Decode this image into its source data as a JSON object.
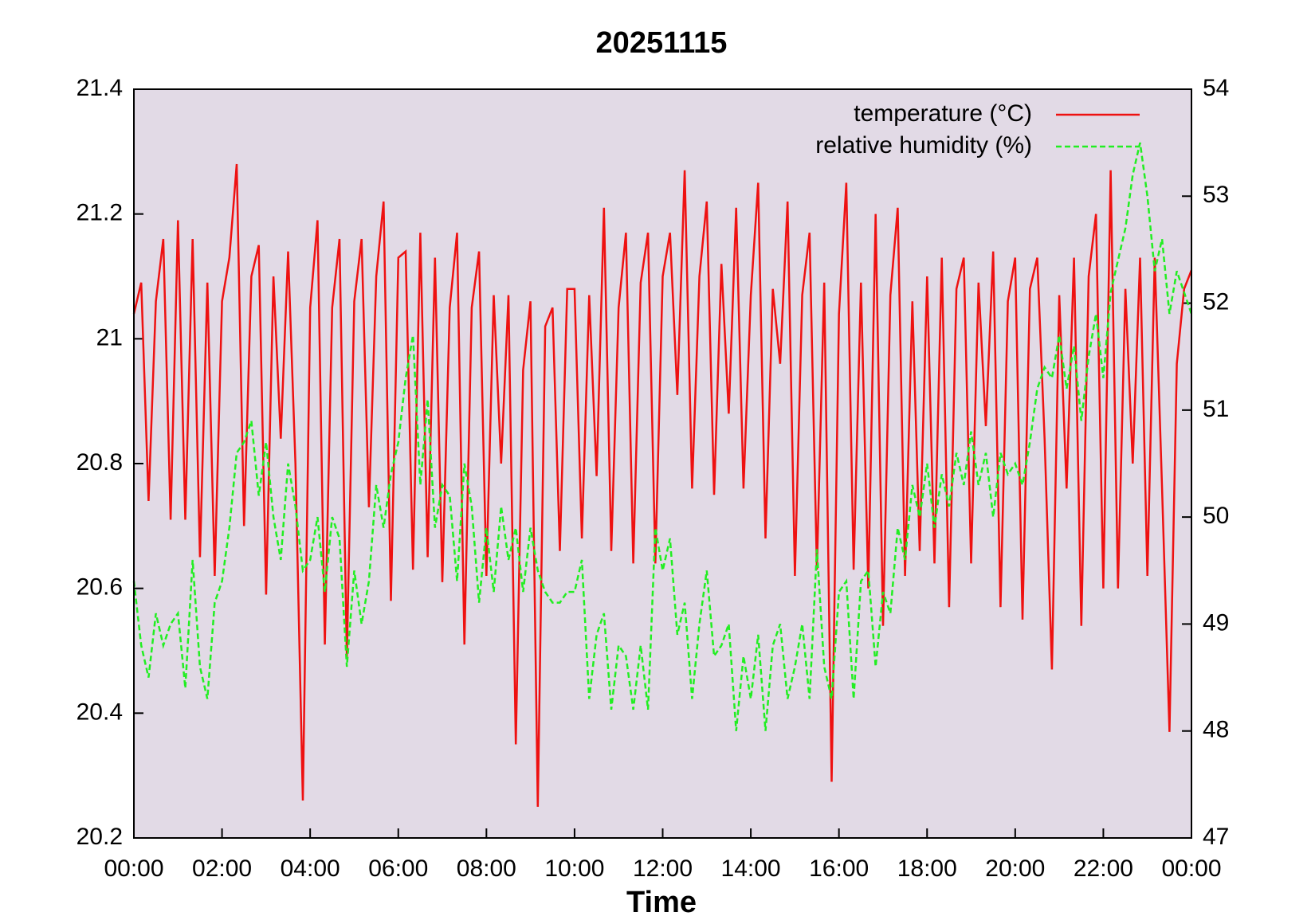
{
  "chart_data": {
    "type": "line",
    "title": "20251115",
    "x_label": "Time",
    "x": [
      0,
      10,
      20,
      30,
      40,
      50,
      60,
      70,
      80,
      90,
      100,
      110,
      120,
      130,
      140,
      150,
      160,
      170,
      180,
      190,
      200,
      210,
      220,
      230,
      240,
      250,
      260,
      270,
      280,
      290,
      300,
      310,
      320,
      330,
      340,
      350,
      360,
      370,
      380,
      390,
      400,
      410,
      420,
      430,
      440,
      450,
      460,
      470,
      480,
      490,
      500,
      510,
      520,
      530,
      540,
      550,
      560,
      570,
      580,
      590,
      600,
      610,
      620,
      630,
      640,
      650,
      660,
      670,
      680,
      690,
      700,
      710,
      720,
      730,
      740,
      750,
      760,
      770,
      780,
      790,
      800,
      810,
      820,
      830,
      840,
      850,
      860,
      870,
      880,
      890,
      900,
      910,
      920,
      930,
      940,
      950,
      960,
      970,
      980,
      990,
      1000,
      1010,
      1020,
      1030,
      1040,
      1050,
      1060,
      1070,
      1080,
      1090,
      1100,
      1110,
      1120,
      1130,
      1140,
      1150,
      1160,
      1170,
      1180,
      1190,
      1200,
      1210,
      1220,
      1230,
      1240,
      1250,
      1260,
      1270,
      1280,
      1290,
      1300,
      1310,
      1320,
      1330,
      1340,
      1350,
      1360,
      1370,
      1380,
      1390,
      1400,
      1410,
      1420,
      1430,
      1440
    ],
    "series": [
      {
        "name": "temperature (°C)",
        "color": "#ee1111",
        "axis": "y",
        "dash": false,
        "values": [
          21.04,
          21.09,
          20.74,
          21.06,
          21.16,
          20.71,
          21.19,
          20.71,
          21.16,
          20.65,
          21.09,
          20.62,
          21.06,
          21.13,
          21.28,
          20.7,
          21.1,
          21.15,
          20.59,
          21.1,
          20.84,
          21.14,
          20.8,
          20.26,
          21.05,
          21.19,
          20.51,
          21.05,
          21.16,
          20.49,
          21.06,
          21.16,
          20.73,
          21.1,
          21.22,
          20.58,
          21.13,
          21.14,
          20.63,
          21.17,
          20.65,
          21.13,
          20.61,
          21.05,
          21.17,
          20.51,
          21.05,
          21.14,
          20.62,
          21.07,
          20.8,
          21.07,
          20.35,
          20.95,
          21.06,
          20.25,
          21.02,
          21.05,
          20.66,
          21.08,
          21.08,
          20.68,
          21.07,
          20.78,
          21.21,
          20.66,
          21.05,
          21.17,
          20.64,
          21.09,
          21.17,
          20.64,
          21.1,
          21.17,
          20.91,
          21.27,
          20.76,
          21.1,
          21.22,
          20.75,
          21.12,
          20.88,
          21.21,
          20.76,
          21.07,
          21.25,
          20.68,
          21.08,
          20.96,
          21.22,
          20.62,
          21.07,
          21.17,
          20.63,
          21.09,
          20.29,
          21.04,
          21.25,
          20.63,
          21.09,
          20.6,
          21.2,
          20.54,
          21.07,
          21.21,
          20.62,
          21.06,
          20.66,
          21.1,
          20.64,
          21.13,
          20.57,
          21.08,
          21.13,
          20.64,
          21.09,
          20.86,
          21.14,
          20.57,
          21.06,
          21.13,
          20.55,
          21.08,
          21.13,
          20.84,
          20.47,
          21.07,
          20.76,
          21.13,
          20.54,
          21.1,
          21.2,
          20.6,
          21.27,
          20.6,
          21.08,
          20.8,
          21.13,
          20.62,
          21.13,
          20.76,
          20.37,
          20.96,
          21.08,
          21.11
        ]
      },
      {
        "name": "relative humidity (%)",
        "color": "#22ee22",
        "axis": "y2",
        "dash": true,
        "values": [
          49.4,
          48.8,
          48.5,
          49.1,
          48.8,
          49.0,
          49.1,
          48.4,
          49.6,
          48.6,
          48.3,
          49.2,
          49.4,
          49.9,
          50.6,
          50.7,
          50.9,
          50.2,
          50.7,
          50.0,
          49.6,
          50.5,
          50.1,
          49.5,
          49.6,
          50.0,
          49.3,
          50.0,
          49.8,
          48.6,
          49.5,
          49.0,
          49.4,
          50.3,
          49.9,
          50.4,
          50.7,
          51.3,
          51.7,
          50.3,
          51.1,
          49.9,
          50.3,
          50.2,
          49.4,
          50.5,
          50.1,
          49.2,
          49.9,
          49.3,
          50.1,
          49.6,
          49.9,
          49.3,
          49.9,
          49.5,
          49.3,
          49.2,
          49.2,
          49.3,
          49.3,
          49.6,
          48.3,
          48.9,
          49.1,
          48.2,
          48.8,
          48.7,
          48.2,
          48.8,
          48.2,
          49.9,
          49.5,
          49.8,
          48.9,
          49.2,
          48.3,
          49.0,
          49.5,
          48.7,
          48.8,
          49.0,
          48.0,
          48.7,
          48.3,
          48.9,
          48.0,
          48.8,
          49.0,
          48.3,
          48.6,
          49.0,
          48.3,
          49.7,
          48.6,
          48.3,
          49.3,
          49.4,
          48.3,
          49.4,
          49.5,
          48.6,
          49.3,
          49.1,
          49.9,
          49.6,
          50.3,
          50.0,
          50.5,
          49.9,
          50.4,
          50.1,
          50.6,
          50.3,
          50.8,
          50.3,
          50.6,
          50.0,
          50.6,
          50.4,
          50.5,
          50.3,
          50.7,
          51.2,
          51.4,
          51.3,
          51.7,
          51.2,
          51.6,
          50.9,
          51.5,
          51.9,
          51.3,
          52.1,
          52.4,
          52.7,
          53.2,
          53.5,
          53.0,
          52.3,
          52.6,
          51.9,
          52.3,
          52.1,
          51.9
        ]
      }
    ],
    "xlim": [
      0,
      1440
    ],
    "xticks": [
      {
        "value": 0,
        "label": "00:00"
      },
      {
        "value": 120,
        "label": "02:00"
      },
      {
        "value": 240,
        "label": "04:00"
      },
      {
        "value": 360,
        "label": "06:00"
      },
      {
        "value": 480,
        "label": "08:00"
      },
      {
        "value": 600,
        "label": "10:00"
      },
      {
        "value": 720,
        "label": "12:00"
      },
      {
        "value": 840,
        "label": "14:00"
      },
      {
        "value": 960,
        "label": "16:00"
      },
      {
        "value": 1080,
        "label": "18:00"
      },
      {
        "value": 1200,
        "label": "20:00"
      },
      {
        "value": 1320,
        "label": "22:00"
      },
      {
        "value": 1440,
        "label": "00:00"
      }
    ],
    "ylim": [
      20.2,
      21.4
    ],
    "yticks": [
      20.2,
      20.4,
      20.6,
      20.8,
      21,
      21.2,
      21.4
    ],
    "y2lim": [
      47,
      54
    ],
    "y2ticks": [
      47,
      48,
      49,
      50,
      51,
      52,
      53,
      54
    ],
    "legend": "top-right",
    "background": "#e2dae6"
  }
}
